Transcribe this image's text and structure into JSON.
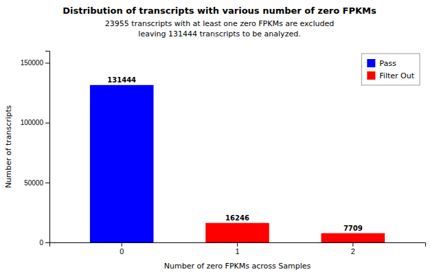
{
  "chart_data": {
    "type": "bar",
    "title": "Distribution of transcripts with various number of zero FPKMs",
    "subtitle": [
      "23955 transcripts with at least one zero FPKMs are excluded",
      "leaving 131444 transcripts to be analyzed."
    ],
    "xlabel": "Number of zero FPKMs across Samples",
    "ylabel": "Number of transcripts",
    "categories": [
      0,
      1,
      2
    ],
    "series": [
      {
        "name": "Pass",
        "color": "blue",
        "values": [
          131444,
          null,
          null
        ]
      },
      {
        "name": "Filter Out",
        "color": "red",
        "values": [
          null,
          16246,
          7709
        ]
      }
    ],
    "stacked": true,
    "data_labels": true,
    "legend": "upper right",
    "grid": false,
    "ylim": [
      0,
      160000
    ],
    "yticks": [
      0,
      50000,
      100000,
      150000
    ]
  }
}
